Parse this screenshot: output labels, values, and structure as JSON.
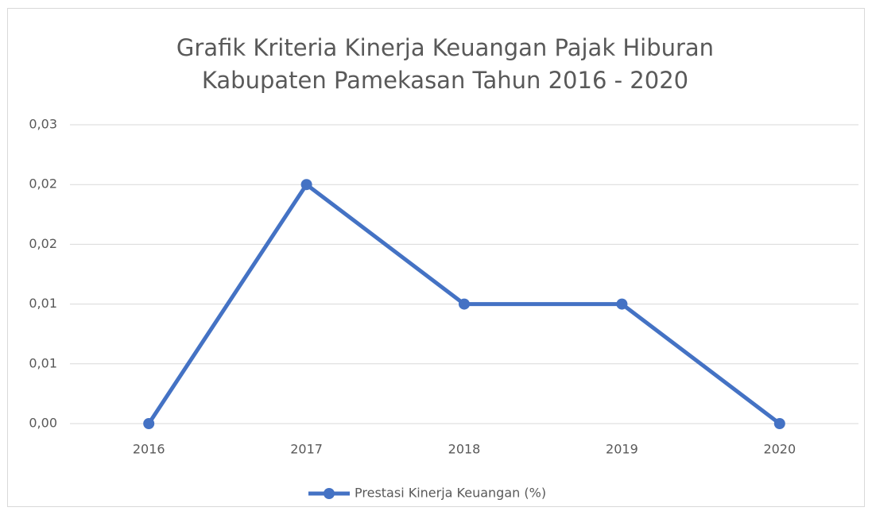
{
  "chart_data": {
    "type": "line",
    "title": [
      "Grafik Kriteria Kinerja Keuangan Pajak Hiburan",
      "Kabupaten Pamekasan Tahun 2016 - 2020"
    ],
    "categories": [
      "2016",
      "2017",
      "2018",
      "2019",
      "2020"
    ],
    "series": [
      {
        "name": "Prestasi Kinerja Keuangan (%)",
        "color": "#4472c4",
        "values": [
          0,
          0.02,
          0.01,
          0.01,
          0
        ]
      }
    ],
    "ylim": [
      0,
      0.025
    ],
    "yticks": [
      {
        "value": 0,
        "label": "0,00"
      },
      {
        "value": 0.005,
        "label": "0,01"
      },
      {
        "value": 0.01,
        "label": "0,01"
      },
      {
        "value": 0.015,
        "label": "0,02"
      },
      {
        "value": 0.02,
        "label": "0,02"
      },
      {
        "value": 0.025,
        "label": "0,03"
      }
    ],
    "grid": true,
    "legend": "bottom"
  }
}
